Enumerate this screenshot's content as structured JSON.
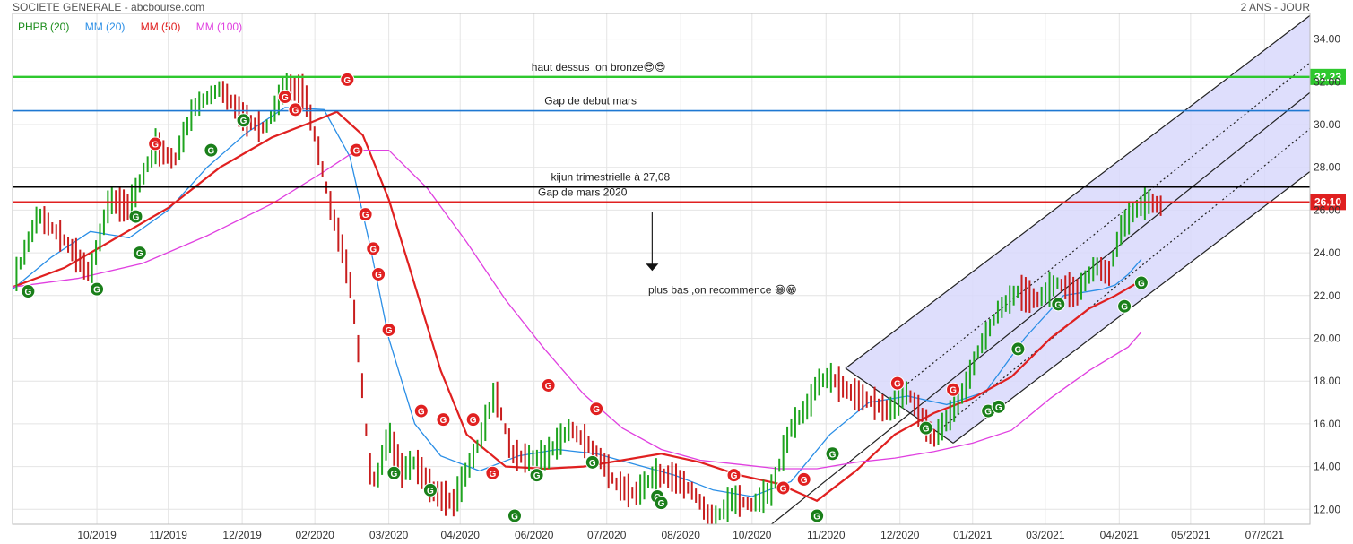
{
  "header": {
    "title": "SOCIETE GENERALE - abcbourse.com",
    "period": "2 ANS - JOUR"
  },
  "legend": [
    {
      "label": "PHPB (20)",
      "color": "#1a8c1a"
    },
    {
      "label": "MM (20)",
      "color": "#2a8ee6"
    },
    {
      "label": "MM (50)",
      "color": "#e02020"
    },
    {
      "label": "MM (100)",
      "color": "#e040e0"
    }
  ],
  "chart_data": {
    "type": "line",
    "title": "SOCIETE GENERALE - abcbourse.com",
    "period": "2 ANS - JOUR",
    "xlabel": "",
    "ylabel": "",
    "ylim": [
      11.3,
      35.2
    ],
    "y_ticks": [
      12.0,
      14.0,
      16.0,
      18.0,
      20.0,
      22.0,
      24.0,
      26.0,
      28.0,
      30.0,
      32.0,
      34.0
    ],
    "x_ticks": [
      {
        "label": "10/2019",
        "t": 0.065
      },
      {
        "label": "11/2019",
        "t": 0.12
      },
      {
        "label": "12/2019",
        "t": 0.177
      },
      {
        "label": "02/2020",
        "t": 0.233
      },
      {
        "label": "03/2020",
        "t": 0.29
      },
      {
        "label": "04/2020",
        "t": 0.345
      },
      {
        "label": "06/2020",
        "t": 0.402
      },
      {
        "label": "07/2020",
        "t": 0.458
      },
      {
        "label": "08/2020",
        "t": 0.515
      },
      {
        "label": "10/2020",
        "t": 0.57
      },
      {
        "label": "11/2020",
        "t": 0.627
      },
      {
        "label": "12/2020",
        "t": 0.684
      },
      {
        "label": "01/2021",
        "t": 0.74
      },
      {
        "label": "03/2021",
        "t": 0.796
      },
      {
        "label": "04/2021",
        "t": 0.853
      },
      {
        "label": "05/2021",
        "t": 0.908
      },
      {
        "label": "07/2021",
        "t": 0.965
      }
    ],
    "grid": true,
    "price_series": {
      "name": "",
      "t": [
        0.0,
        0.02,
        0.04,
        0.06,
        0.075,
        0.09,
        0.11,
        0.125,
        0.14,
        0.16,
        0.18,
        0.195,
        0.21,
        0.225,
        0.235,
        0.245,
        0.255,
        0.262,
        0.27,
        0.275,
        0.28,
        0.29,
        0.3,
        0.31,
        0.325,
        0.34,
        0.36,
        0.372,
        0.385,
        0.395,
        0.41,
        0.43,
        0.45,
        0.465,
        0.48,
        0.495,
        0.51,
        0.525,
        0.54,
        0.555,
        0.57,
        0.585,
        0.6,
        0.615,
        0.62,
        0.63,
        0.645,
        0.66,
        0.675,
        0.69,
        0.71,
        0.725,
        0.735,
        0.745,
        0.76,
        0.775,
        0.79,
        0.805,
        0.82,
        0.835,
        0.845,
        0.855,
        0.865,
        0.875,
        0.885
      ],
      "values": [
        22.5,
        25.8,
        24.6,
        23.0,
        26.5,
        26.1,
        29.0,
        28.3,
        30.8,
        31.7,
        30.2,
        29.8,
        31.8,
        31.5,
        29.0,
        26.2,
        24.0,
        22.0,
        17.5,
        14.0,
        13.2,
        15.5,
        13.8,
        14.2,
        12.8,
        12.3,
        15.2,
        17.5,
        14.6,
        14.4,
        14.4,
        15.8,
        14.7,
        13.2,
        12.7,
        13.6,
        13.5,
        12.8,
        11.4,
        12.5,
        12.2,
        12.9,
        15.8,
        17.0,
        17.9,
        18.2,
        17.5,
        17.1,
        16.6,
        17.5,
        15.3,
        16.6,
        17.8,
        19.5,
        21.3,
        22.2,
        21.8,
        22.6,
        22.1,
        23.4,
        23.0,
        25.2,
        26.0,
        26.4,
        26.2
      ]
    },
    "series": [
      {
        "name": "MM (20)",
        "color": "#2a8ee6",
        "t": [
          0.0,
          0.03,
          0.06,
          0.09,
          0.12,
          0.15,
          0.18,
          0.21,
          0.24,
          0.26,
          0.275,
          0.29,
          0.31,
          0.33,
          0.36,
          0.39,
          0.42,
          0.45,
          0.48,
          0.51,
          0.54,
          0.57,
          0.6,
          0.63,
          0.66,
          0.69,
          0.72,
          0.75,
          0.78,
          0.81,
          0.84,
          0.85,
          0.86,
          0.87
        ],
        "values": [
          22.3,
          23.8,
          25.0,
          24.7,
          26.0,
          28.0,
          29.6,
          30.8,
          30.7,
          28.5,
          24.5,
          20.0,
          16.0,
          14.5,
          13.8,
          14.5,
          14.8,
          14.6,
          14.1,
          13.6,
          12.9,
          12.6,
          13.3,
          15.5,
          17.0,
          17.3,
          16.9,
          17.5,
          20.0,
          22.0,
          22.3,
          22.5,
          23.0,
          23.7
        ]
      },
      {
        "name": "MM (50)",
        "color": "#e02020",
        "t": [
          0.0,
          0.04,
          0.08,
          0.12,
          0.16,
          0.2,
          0.23,
          0.25,
          0.27,
          0.29,
          0.31,
          0.33,
          0.35,
          0.38,
          0.41,
          0.44,
          0.47,
          0.5,
          0.53,
          0.56,
          0.59,
          0.62,
          0.65,
          0.68,
          0.71,
          0.74,
          0.77,
          0.8,
          0.83,
          0.85,
          0.87
        ],
        "values": [
          22.4,
          23.3,
          24.7,
          26.1,
          28.0,
          29.4,
          30.1,
          30.6,
          29.5,
          26.5,
          22.5,
          18.5,
          15.5,
          14.0,
          13.9,
          14.0,
          14.3,
          14.6,
          14.2,
          13.6,
          13.2,
          12.4,
          13.8,
          15.5,
          16.5,
          17.2,
          18.2,
          20.0,
          21.4,
          22.0,
          22.7
        ]
      },
      {
        "name": "MM (100)",
        "color": "#e040e0",
        "t": [
          0.0,
          0.05,
          0.1,
          0.15,
          0.2,
          0.24,
          0.265,
          0.29,
          0.32,
          0.35,
          0.38,
          0.41,
          0.44,
          0.47,
          0.5,
          0.53,
          0.56,
          0.59,
          0.62,
          0.65,
          0.68,
          0.71,
          0.74,
          0.77,
          0.8,
          0.83,
          0.86,
          0.87
        ],
        "values": [
          22.4,
          22.8,
          23.5,
          24.8,
          26.3,
          27.8,
          28.8,
          28.8,
          27.0,
          24.5,
          21.8,
          19.5,
          17.4,
          15.8,
          14.8,
          14.3,
          14.1,
          13.9,
          13.9,
          14.2,
          14.4,
          14.7,
          15.1,
          15.7,
          17.2,
          18.5,
          19.6,
          20.3
        ]
      }
    ],
    "horizontal_lines": [
      {
        "value": 32.23,
        "color": "#2ec82e",
        "label": "haut dessus ,on bronze😎😎",
        "label_t": 0.4,
        "badge": "32.23"
      },
      {
        "value": 30.65,
        "color": "#1e78d2",
        "label": "Gap de debut mars",
        "label_t": 0.41
      },
      {
        "value": 27.08,
        "color": "#000000",
        "label": "kijun trimestrielle à 27,08",
        "label_t": 0.415
      },
      {
        "value": 26.38,
        "color": "#e02020",
        "label": "Gap de mars 2020",
        "label_t": 0.405,
        "badge": "26.10"
      }
    ],
    "current_value": "26.10",
    "annotations": [
      {
        "text": "plus bas ,on recommence 😁😁",
        "t": 0.49,
        "value": 22.1
      }
    ],
    "arrow": {
      "t": 0.493,
      "from": 25.9,
      "to": 23.2
    },
    "channel": {
      "fill": "#d8d8fb",
      "outer_top": {
        "t0": 0.642,
        "v0": 18.6,
        "t1": 1.0,
        "v1": 35.1
      },
      "outer_bottom": {
        "t0": 0.725,
        "v0": 15.1,
        "t1": 1.0,
        "v1": 27.8
      },
      "inner_solid": [
        {
          "t0": 0.585,
          "v0": 11.3,
          "t1": 1.0,
          "v1": 31.5
        }
      ],
      "inner_dotted": [
        {
          "t0": 0.69,
          "v0": 17.9,
          "t1": 1.0,
          "v1": 32.9
        },
        {
          "t0": 0.71,
          "v0": 15.5,
          "t1": 1.0,
          "v1": 29.8
        }
      ],
      "connector": {
        "t0": 0.642,
        "v0": 18.6,
        "t1": 0.725,
        "v1": 15.1
      }
    },
    "markers": [
      {
        "t": 0.012,
        "v": 22.2,
        "kind": "G",
        "color": "#1a7f1a"
      },
      {
        "t": 0.065,
        "v": 22.3,
        "kind": "G",
        "color": "#1a7f1a"
      },
      {
        "t": 0.095,
        "v": 25.7,
        "kind": "G",
        "color": "#1a7f1a"
      },
      {
        "t": 0.098,
        "v": 24.0,
        "kind": "G",
        "color": "#1a7f1a"
      },
      {
        "t": 0.11,
        "v": 29.1,
        "kind": "G",
        "color": "#e02020"
      },
      {
        "t": 0.153,
        "v": 28.8,
        "kind": "G",
        "color": "#1a7f1a"
      },
      {
        "t": 0.178,
        "v": 30.2,
        "kind": "G",
        "color": "#1a7f1a"
      },
      {
        "t": 0.21,
        "v": 31.3,
        "kind": "G",
        "color": "#e02020"
      },
      {
        "t": 0.218,
        "v": 30.7,
        "kind": "G",
        "color": "#e02020"
      },
      {
        "t": 0.258,
        "v": 32.1,
        "kind": "G",
        "color": "#e02020"
      },
      {
        "t": 0.265,
        "v": 28.8,
        "kind": "G",
        "color": "#e02020"
      },
      {
        "t": 0.272,
        "v": 25.8,
        "kind": "G",
        "color": "#e02020"
      },
      {
        "t": 0.278,
        "v": 24.2,
        "kind": "G",
        "color": "#e02020"
      },
      {
        "t": 0.282,
        "v": 23.0,
        "kind": "G",
        "color": "#e02020"
      },
      {
        "t": 0.29,
        "v": 20.4,
        "kind": "G",
        "color": "#e02020"
      },
      {
        "t": 0.294,
        "v": 13.7,
        "kind": "G",
        "color": "#1a7f1a"
      },
      {
        "t": 0.315,
        "v": 16.6,
        "kind": "G",
        "color": "#e02020"
      },
      {
        "t": 0.322,
        "v": 12.9,
        "kind": "G",
        "color": "#1a7f1a"
      },
      {
        "t": 0.332,
        "v": 16.2,
        "kind": "G",
        "color": "#e02020"
      },
      {
        "t": 0.355,
        "v": 16.2,
        "kind": "G",
        "color": "#e02020"
      },
      {
        "t": 0.37,
        "v": 13.7,
        "kind": "G",
        "color": "#e02020"
      },
      {
        "t": 0.387,
        "v": 11.7,
        "kind": "G",
        "color": "#1a7f1a"
      },
      {
        "t": 0.404,
        "v": 13.6,
        "kind": "G",
        "color": "#1a7f1a"
      },
      {
        "t": 0.413,
        "v": 17.8,
        "kind": "G",
        "color": "#e02020"
      },
      {
        "t": 0.447,
        "v": 14.2,
        "kind": "G",
        "color": "#1a7f1a"
      },
      {
        "t": 0.45,
        "v": 16.7,
        "kind": "G",
        "color": "#e02020"
      },
      {
        "t": 0.497,
        "v": 12.6,
        "kind": "G",
        "color": "#1a7f1a"
      },
      {
        "t": 0.5,
        "v": 12.3,
        "kind": "G",
        "color": "#1a7f1a"
      },
      {
        "t": 0.556,
        "v": 13.6,
        "kind": "G",
        "color": "#e02020"
      },
      {
        "t": 0.594,
        "v": 13.0,
        "kind": "G",
        "color": "#e02020"
      },
      {
        "t": 0.61,
        "v": 13.4,
        "kind": "G",
        "color": "#e02020"
      },
      {
        "t": 0.62,
        "v": 11.7,
        "kind": "G",
        "color": "#1a7f1a"
      },
      {
        "t": 0.632,
        "v": 14.6,
        "kind": "G",
        "color": "#1a7f1a"
      },
      {
        "t": 0.682,
        "v": 17.9,
        "kind": "G",
        "color": "#e02020"
      },
      {
        "t": 0.704,
        "v": 15.8,
        "kind": "G",
        "color": "#1a7f1a"
      },
      {
        "t": 0.725,
        "v": 17.6,
        "kind": "G",
        "color": "#e02020"
      },
      {
        "t": 0.752,
        "v": 16.6,
        "kind": "G",
        "color": "#1a7f1a"
      },
      {
        "t": 0.76,
        "v": 16.8,
        "kind": "G",
        "color": "#1a7f1a"
      },
      {
        "t": 0.775,
        "v": 19.5,
        "kind": "G",
        "color": "#1a7f1a"
      },
      {
        "t": 0.806,
        "v": 21.6,
        "kind": "G",
        "color": "#1a7f1a"
      },
      {
        "t": 0.857,
        "v": 21.5,
        "kind": "G",
        "color": "#1a7f1a"
      },
      {
        "t": 0.87,
        "v": 22.6,
        "kind": "G",
        "color": "#1a7f1a"
      }
    ]
  }
}
